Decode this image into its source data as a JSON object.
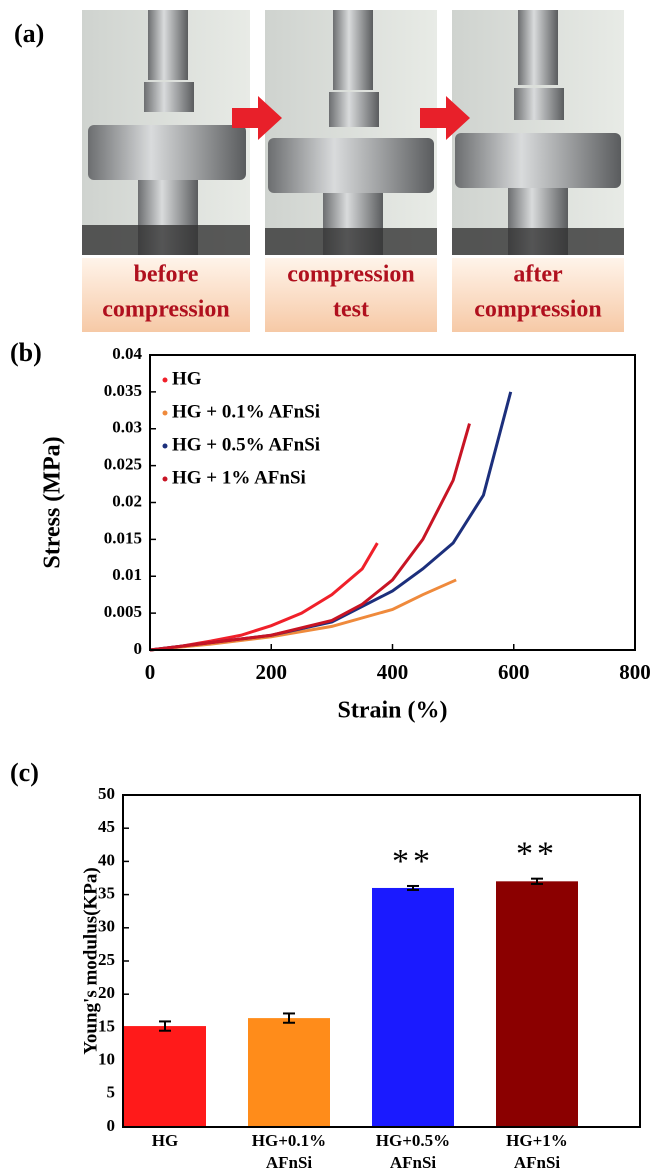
{
  "figure_a": {
    "label": "(a)",
    "captions": [
      [
        "before",
        "compression"
      ],
      [
        "compression",
        "test"
      ],
      [
        "after",
        "compression"
      ]
    ]
  },
  "chart_data": [
    {
      "type": "line",
      "label": "(b)",
      "x_label": "Strain (%)",
      "y_label": "Stress (MPa)",
      "xlim": [
        0,
        800
      ],
      "xticks": [
        0,
        200,
        400,
        600,
        800
      ],
      "ylim": [
        0,
        0.04
      ],
      "yticks": [
        0,
        0.005,
        0.01,
        0.015,
        0.02,
        0.025,
        0.03,
        0.035,
        0.04
      ],
      "legend": "upper left",
      "series": [
        {
          "name": "HG",
          "color": "#f0202a",
          "x": [
            0,
            50,
            100,
            150,
            200,
            250,
            300,
            350,
            375
          ],
          "values": [
            0,
            0.0005,
            0.0012,
            0.002,
            0.0033,
            0.005,
            0.0075,
            0.011,
            0.0145
          ]
        },
        {
          "name": "HG + 0.1% AFnSi",
          "color": "#ef8a3c",
          "x": [
            0,
            100,
            200,
            300,
            400,
            450,
            505
          ],
          "values": [
            0,
            0.0008,
            0.0018,
            0.0032,
            0.0055,
            0.0075,
            0.0095
          ]
        },
        {
          "name": "HG + 0.5% AFnSi",
          "color": "#1c2f7c",
          "x": [
            0,
            100,
            200,
            300,
            400,
            450,
            500,
            550,
            595
          ],
          "values": [
            0,
            0.001,
            0.002,
            0.0038,
            0.008,
            0.011,
            0.0145,
            0.021,
            0.035
          ]
        },
        {
          "name": "HG + 1% AFnSi",
          "color": "#c81424",
          "x": [
            0,
            100,
            200,
            300,
            350,
            400,
            450,
            500,
            527
          ],
          "values": [
            0,
            0.001,
            0.002,
            0.004,
            0.0062,
            0.0095,
            0.015,
            0.023,
            0.0307
          ]
        }
      ]
    },
    {
      "type": "bar",
      "label": "(c)",
      "y_label": "Young's modulus(KPa)",
      "categories": [
        "HG",
        "HG+0.1% AFnSi",
        "HG+0.5% AFnSi",
        "HG+1% AFnSi"
      ],
      "values": [
        15.2,
        16.4,
        36.0,
        37.0
      ],
      "errors": [
        0.7,
        0.7,
        0.3,
        0.4
      ],
      "colors": [
        "#ff1a1a",
        "#ff8c1a",
        "#1a1aff",
        "#8b0000"
      ],
      "annotations": [
        null,
        null,
        "**",
        "**"
      ],
      "ylim": [
        0,
        50
      ],
      "yticks": [
        0,
        5,
        10,
        15,
        20,
        25,
        30,
        35,
        40,
        45,
        50
      ]
    }
  ]
}
